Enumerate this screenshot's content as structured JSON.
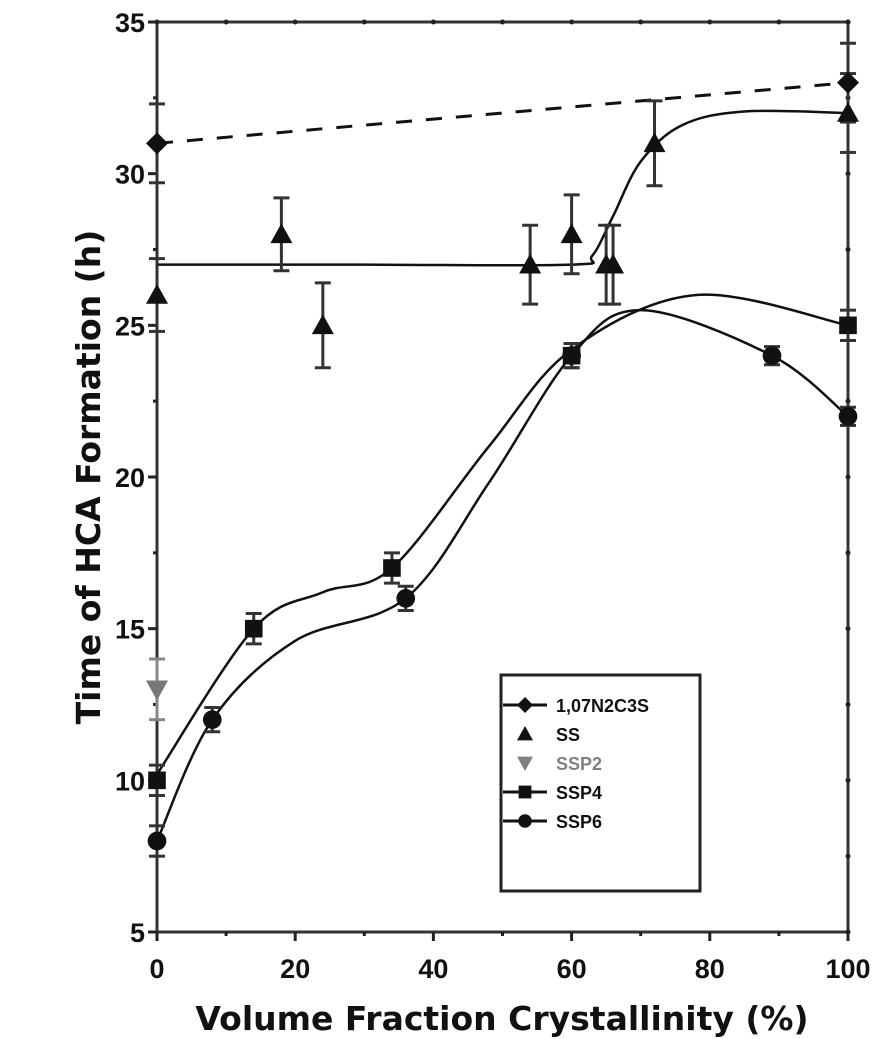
{
  "chart_data": {
    "type": "scatter",
    "title": "",
    "xlabel": "Volume Fraction Crystallinity (%)",
    "ylabel": "Time of HCA Formation (h)",
    "xlim": [
      0,
      100
    ],
    "ylim": [
      5,
      35
    ],
    "x_ticks": [
      0,
      20,
      40,
      60,
      80,
      100
    ],
    "y_ticks": [
      5,
      10,
      15,
      20,
      25,
      30,
      35
    ],
    "grid": false,
    "legend_position": "lower right (inside)",
    "series": [
      {
        "name": "1,07N2C3S",
        "marker": "diamond",
        "color": "#111111",
        "line": "dashed",
        "points": [
          {
            "x": 0,
            "y": 31,
            "err": 1.3
          },
          {
            "x": 100,
            "y": 33,
            "err": 1.3
          }
        ]
      },
      {
        "name": "SS",
        "marker": "triangle-up",
        "color": "#111111",
        "line": "solid-sigmoid",
        "points": [
          {
            "x": 0,
            "y": 26,
            "err": 1.2
          },
          {
            "x": 18,
            "y": 28,
            "err": 1.2
          },
          {
            "x": 24,
            "y": 25,
            "err": 1.4
          },
          {
            "x": 54,
            "y": 27,
            "err": 1.3
          },
          {
            "x": 60,
            "y": 28,
            "err": 1.3
          },
          {
            "x": 65,
            "y": 27,
            "err": 1.3
          },
          {
            "x": 66,
            "y": 27,
            "err": 1.3
          },
          {
            "x": 72,
            "y": 31,
            "err": 1.4
          },
          {
            "x": 100,
            "y": 32,
            "err": 1.3
          }
        ]
      },
      {
        "name": "SSP2",
        "marker": "triangle-down",
        "color": "#777777",
        "line": "none",
        "points": [
          {
            "x": 0,
            "y": 13,
            "err": 1.0
          }
        ]
      },
      {
        "name": "SSP4",
        "marker": "square",
        "color": "#111111",
        "line": "solid-spline",
        "points": [
          {
            "x": 0,
            "y": 10,
            "err": 0.5
          },
          {
            "x": 14,
            "y": 15,
            "err": 0.5
          },
          {
            "x": 34,
            "y": 17,
            "err": 0.5
          },
          {
            "x": 60,
            "y": 24,
            "err": 0.4
          },
          {
            "x": 100,
            "y": 25,
            "err": 0.5
          }
        ]
      },
      {
        "name": "SSP6",
        "marker": "circle",
        "color": "#111111",
        "line": "solid-spline",
        "points": [
          {
            "x": 0,
            "y": 8,
            "err": 0.5
          },
          {
            "x": 8,
            "y": 12,
            "err": 0.4
          },
          {
            "x": 36,
            "y": 16,
            "err": 0.4
          },
          {
            "x": 60,
            "y": 24,
            "err": 0.4
          },
          {
            "x": 89,
            "y": 24,
            "err": 0.3
          },
          {
            "x": 100,
            "y": 22,
            "err": 0.3
          }
        ]
      }
    ]
  },
  "legend": {
    "items": [
      {
        "label": "1,07N2C3S",
        "marker": "diamond",
        "color": "#111111",
        "line": true
      },
      {
        "label": "SS",
        "marker": "triangle-up",
        "color": "#111111",
        "line": false
      },
      {
        "label": "SSP2",
        "marker": "triangle-down",
        "color": "#808080",
        "line": false
      },
      {
        "label": "SSP4",
        "marker": "square",
        "color": "#111111",
        "line": true
      },
      {
        "label": "SSP6",
        "marker": "circle",
        "color": "#111111",
        "line": true
      }
    ]
  }
}
